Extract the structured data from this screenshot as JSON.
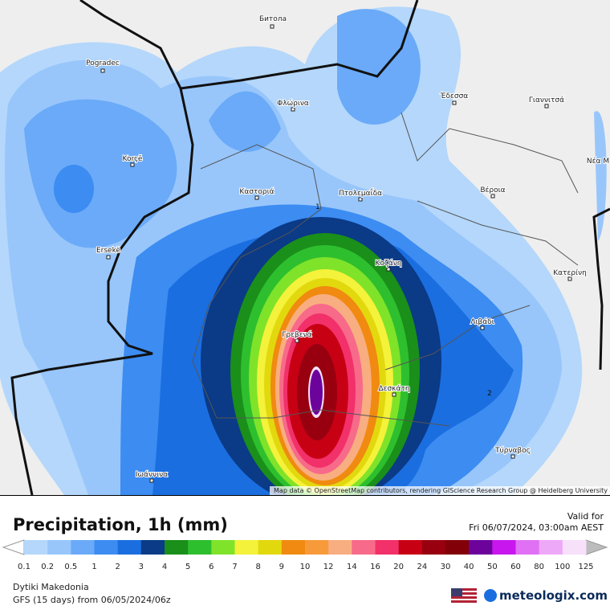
{
  "map": {
    "cities": [
      "Битола",
      "Pogradec",
      "Φλώρινα",
      "Έδεσσα",
      "Γιαννιτσά",
      "Korçë",
      "Καστοριά",
      "Πτολεμαΐδα",
      "Βέροια",
      "Ersekë",
      "Κοζάνη",
      "Κατερίνη",
      "Λιβάδι",
      "Γρεβενά",
      "Δεσκάτη",
      "Τύρναβος",
      "Ιωάννινα",
      "Νέα Μ"
    ],
    "contours": [
      "1",
      "2"
    ],
    "attribution": "Map data © OpenStreetMap contributors, rendering GIScience Research Group @ Heidelberg University"
  },
  "legend": {
    "title": "Precipitation, 1h (mm)",
    "valid_label": "Valid for",
    "valid_time": "Fri 06/07/2024, 03:00am AEST",
    "ticks": [
      0.1,
      0.2,
      0.5,
      1,
      2,
      3,
      4,
      5,
      6,
      7,
      8,
      9,
      10,
      12,
      14,
      16,
      20,
      24,
      30,
      40,
      50,
      60,
      80,
      100,
      125
    ],
    "colors": [
      "#b4d7fb",
      "#98c6fb",
      "#6aaaf8",
      "#3c8cf2",
      "#1a6ee0",
      "#0b3a86",
      "#1a8f1a",
      "#2ebf2e",
      "#7fe32a",
      "#f4f23a",
      "#e2d80e",
      "#f08a10",
      "#f79a3a",
      "#f8ae80",
      "#f86a8a",
      "#f2306a",
      "#c80014",
      "#980010",
      "#820008",
      "#6c049c",
      "#c816ee",
      "#e070f4",
      "#eea8f8",
      "#f6e0fa"
    ],
    "low_color": "#ffffff",
    "high_color": "#bcbcbc",
    "region": "Dytiki Makedonia",
    "model": "GFS (15 days) from  06/05/2024/06z",
    "brand": "meteologix.com"
  }
}
